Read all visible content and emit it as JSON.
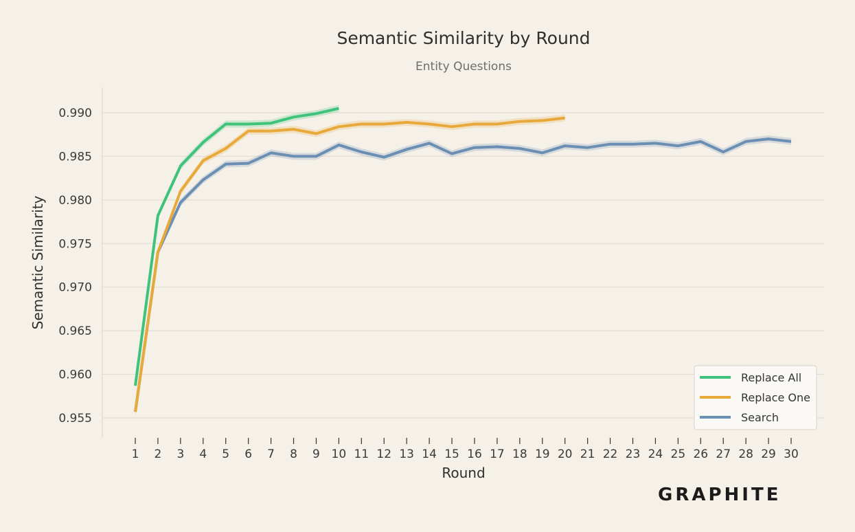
{
  "brand": {
    "name": "GRAPHITE",
    "logo": "graphite-wordmark"
  },
  "chart_data": {
    "type": "line",
    "title": "Semantic Similarity by Round",
    "subtitle": "Entity Questions",
    "xlabel": "Round",
    "ylabel": "Semantic Similarity",
    "xlim": [
      0,
      31
    ],
    "ylim": [
      0.953,
      0.993
    ],
    "x_ticks": [
      1,
      2,
      3,
      4,
      5,
      6,
      7,
      8,
      9,
      10,
      11,
      12,
      13,
      14,
      15,
      16,
      17,
      18,
      19,
      20,
      21,
      22,
      23,
      24,
      25,
      26,
      27,
      28,
      29,
      30
    ],
    "y_ticks": [
      0.955,
      0.96,
      0.965,
      0.97,
      0.975,
      0.98,
      0.985,
      0.99
    ],
    "y_tick_labels": [
      "0.955",
      "0.960",
      "0.965",
      "0.970",
      "0.975",
      "0.980",
      "0.985",
      "0.990"
    ],
    "grid": "horizontal",
    "legend": "bottom-right",
    "confidence_band": 0.0004,
    "series": [
      {
        "name": "Replace All",
        "color": "#3fc27a",
        "x": [
          1,
          2,
          3,
          4,
          5,
          6,
          7,
          8,
          9,
          10
        ],
        "values": [
          0.9587,
          0.9782,
          0.9839,
          0.9866,
          0.9887,
          0.9887,
          0.9888,
          0.9895,
          0.9899,
          0.9905
        ]
      },
      {
        "name": "Replace One",
        "color": "#e8a93b",
        "x": [
          1,
          2,
          3,
          4,
          5,
          6,
          7,
          8,
          9,
          10,
          11,
          12,
          13,
          14,
          15,
          16,
          17,
          18,
          19,
          20
        ],
        "values": [
          0.9557,
          0.974,
          0.981,
          0.9845,
          0.9859,
          0.9879,
          0.9879,
          0.9881,
          0.9876,
          0.9884,
          0.9887,
          0.9887,
          0.9889,
          0.9887,
          0.9884,
          0.9887,
          0.9887,
          0.989,
          0.9891,
          0.9894
        ]
      },
      {
        "name": "Search",
        "color": "#6b8fb3",
        "x": [
          1,
          2,
          3,
          4,
          5,
          6,
          7,
          8,
          9,
          10,
          11,
          12,
          13,
          14,
          15,
          16,
          17,
          18,
          19,
          20,
          21,
          22,
          23,
          24,
          25,
          26,
          27,
          28,
          29,
          30
        ],
        "values": [
          0.9557,
          0.974,
          0.9797,
          0.9823,
          0.9841,
          0.9842,
          0.9854,
          0.985,
          0.985,
          0.9863,
          0.9855,
          0.9849,
          0.9858,
          0.9865,
          0.9853,
          0.986,
          0.9861,
          0.9859,
          0.9854,
          0.9862,
          0.986,
          0.9864,
          0.9864,
          0.9865,
          0.9862,
          0.9867,
          0.9855,
          0.9867,
          0.987,
          0.9867
        ]
      }
    ]
  }
}
